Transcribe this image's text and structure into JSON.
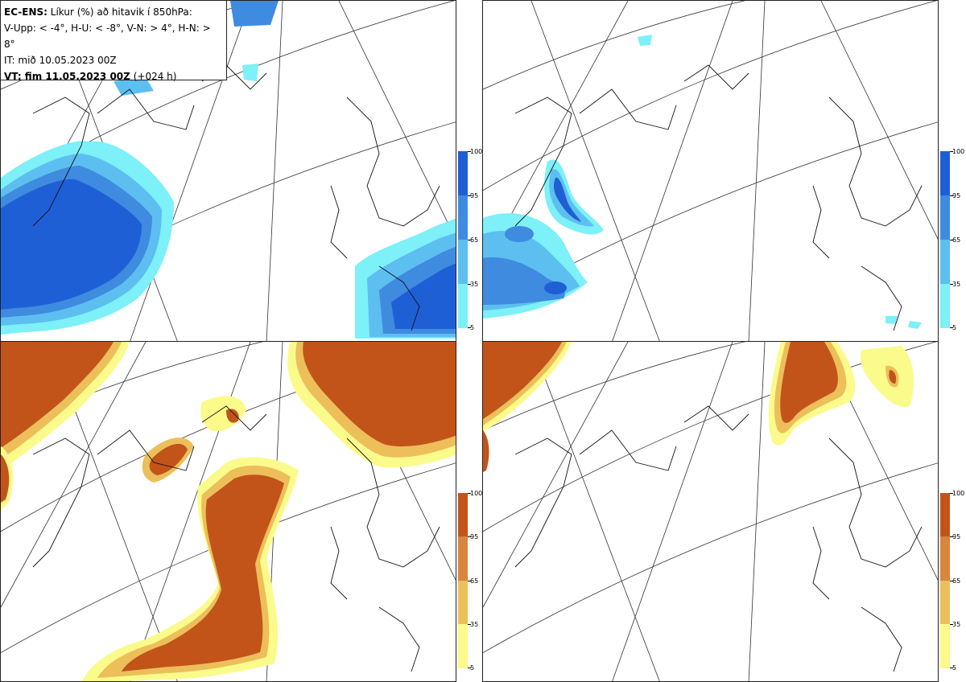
{
  "header": {
    "model": "EC-ENS:",
    "title_rest": "Líkur (%) að hitavik í 850hPa:",
    "thresholds": "V-Upp: < -4°, H-U: < -8°, V-N: > 4°, H-N: > 8°",
    "init_time": "IT: mið 10.05.2023 00Z",
    "valid_label": "VT: fim 11.05.2023 00Z",
    "lead": "(+024 h)"
  },
  "colorbars": {
    "cold": {
      "ticks": [
        "100",
        "95",
        "65",
        "35",
        "5"
      ],
      "colors": [
        "#1f5fd6",
        "#3f8be0",
        "#5cbff0",
        "#7df0f8"
      ]
    },
    "warm": {
      "ticks": [
        "100",
        "95",
        "65",
        "35",
        "5"
      ],
      "colors": [
        "#c2541a",
        "#d8853e",
        "#ecbf5a",
        "#fbfb8c"
      ]
    }
  },
  "panels": [
    {
      "id": "V-Upp",
      "palette": "cold"
    },
    {
      "id": "H-U",
      "palette": "cold"
    },
    {
      "id": "V-N",
      "palette": "warm"
    },
    {
      "id": "H-N",
      "palette": "warm"
    }
  ]
}
